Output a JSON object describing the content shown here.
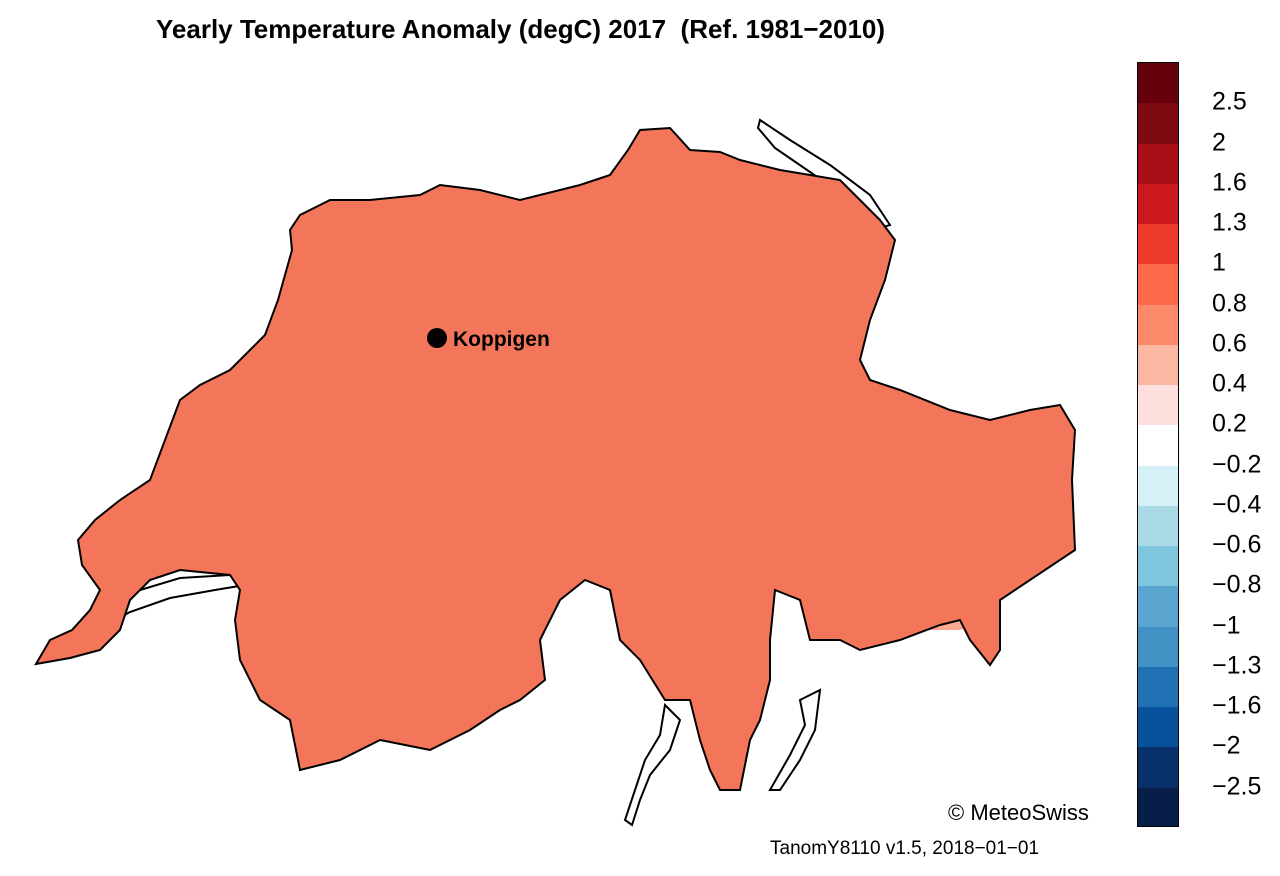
{
  "title": "Yearly Temperature Anomaly (degC) 2017  (Ref. 1981−2010)",
  "station": {
    "name": "Koppigen"
  },
  "credit": "© MeteoSwiss",
  "version": "TanomY8110 v1.5, 2018−01−01",
  "legend": {
    "colors": [
      "#67000d",
      "#7f0a11",
      "#a50f15",
      "#cb181d",
      "#ef3b2c",
      "#fb6a4a",
      "#fc8a6a",
      "#fcb7a3",
      "#fde0dd",
      "#ffffff",
      "#d6f0f7",
      "#a9dae6",
      "#7fc5de",
      "#5aa6d0",
      "#4292c6",
      "#2171b5",
      "#08519c",
      "#08306b",
      "#061e48"
    ],
    "ticks": [
      "2.5",
      "2",
      "1.6",
      "1.3",
      "1",
      "0.8",
      "0.6",
      "0.4",
      "0.2",
      "−0.2",
      "−0.4",
      "−0.6",
      "−0.8",
      "−1",
      "−1.3",
      "−1.6",
      "−2",
      "−2.5"
    ]
  },
  "map_colors": {
    "base": "#f4765a",
    "light": "#f9a98f",
    "pale": "#fbc3b2",
    "strong": "#e8483a",
    "lake": "#ffffff"
  }
}
